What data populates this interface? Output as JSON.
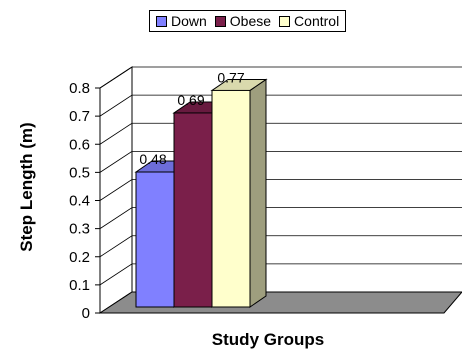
{
  "chart_data": {
    "type": "bar",
    "title": "",
    "xlabel": "Study Groups",
    "ylabel": "Step Length (m)",
    "ylim": [
      0,
      0.8
    ],
    "yticks": [
      "0",
      "0.1",
      "0.2",
      "0.3",
      "0.4",
      "0.5",
      "0.6",
      "0.7",
      "0.8"
    ],
    "grid": true,
    "legend_position": "top",
    "series": [
      {
        "name": "Down",
        "value": 0.48,
        "label": "0.48",
        "color": "#8080ff"
      },
      {
        "name": "Obese",
        "value": 0.69,
        "label": "0.69",
        "color": "#7a1f4a"
      },
      {
        "name": "Control",
        "value": 0.77,
        "label": "0.77",
        "color": "#ffffcc"
      }
    ]
  }
}
